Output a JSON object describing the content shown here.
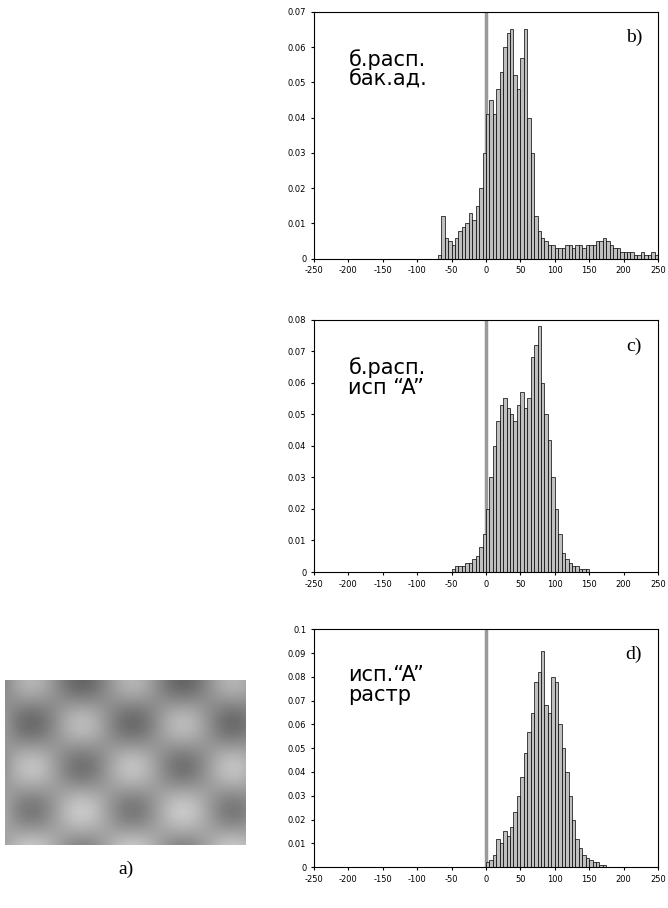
{
  "chart_data": [
    {
      "type": "histogram",
      "label": "b)",
      "annotation": "б.расп.\nбак.ад.",
      "bins": [
        -70,
        -65,
        -60,
        -55,
        -50,
        -45,
        -40,
        -35,
        -30,
        -25,
        -20,
        -15,
        -10,
        -5,
        0,
        5,
        10,
        15,
        20,
        25,
        30,
        35,
        40,
        45,
        50,
        55,
        60,
        65,
        70,
        75,
        80,
        85,
        90,
        95,
        100,
        105,
        110,
        115,
        120,
        125,
        130,
        135,
        140,
        145,
        150,
        155,
        160,
        165,
        170,
        175,
        180,
        185,
        190,
        195,
        200,
        205,
        210,
        215,
        220,
        225,
        230,
        235,
        240,
        245,
        250
      ],
      "counts": [
        0.001,
        0.012,
        0.006,
        0.005,
        0.004,
        0.006,
        0.008,
        0.009,
        0.01,
        0.013,
        0.011,
        0.015,
        0.02,
        0.03,
        0.041,
        0.045,
        0.041,
        0.048,
        0.053,
        0.06,
        0.064,
        0.065,
        0.052,
        0.048,
        0.057,
        0.065,
        0.04,
        0.03,
        0.012,
        0.008,
        0.006,
        0.005,
        0.004,
        0.004,
        0.003,
        0.003,
        0.003,
        0.004,
        0.004,
        0.003,
        0.004,
        0.004,
        0.003,
        0.004,
        0.004,
        0.004,
        0.005,
        0.005,
        0.006,
        0.005,
        0.004,
        0.003,
        0.003,
        0.002,
        0.002,
        0.002,
        0.002,
        0.001,
        0.001,
        0.002,
        0.001,
        0.001,
        0.002,
        0.001
      ],
      "color": "#bfbfbf",
      "reference_line": 0,
      "xlim": [
        -250,
        250
      ],
      "xticks": [
        -250,
        -200,
        -150,
        -100,
        -50,
        0,
        50,
        100,
        150,
        200,
        250
      ],
      "ylim": [
        0,
        0.07
      ],
      "yticks": [
        0,
        0.01,
        0.02,
        0.03,
        0.04,
        0.05,
        0.06,
        0.07
      ]
    },
    {
      "type": "histogram",
      "label": "c)",
      "annotation": "б.расп.\nисп “A”",
      "bins": [
        -50,
        -45,
        -40,
        -35,
        -30,
        -25,
        -20,
        -15,
        -10,
        -5,
        0,
        5,
        10,
        15,
        20,
        25,
        30,
        35,
        40,
        45,
        50,
        55,
        60,
        65,
        70,
        75,
        80,
        85,
        90,
        95,
        100,
        105,
        110,
        115,
        120,
        125,
        130,
        135,
        140,
        145,
        150
      ],
      "counts": [
        0.001,
        0.002,
        0.002,
        0.002,
        0.003,
        0.003,
        0.004,
        0.005,
        0.008,
        0.012,
        0.02,
        0.03,
        0.04,
        0.048,
        0.053,
        0.055,
        0.052,
        0.05,
        0.048,
        0.053,
        0.057,
        0.052,
        0.055,
        0.068,
        0.072,
        0.078,
        0.06,
        0.05,
        0.042,
        0.03,
        0.02,
        0.012,
        0.006,
        0.004,
        0.003,
        0.002,
        0.002,
        0.001,
        0.001,
        0.001
      ],
      "color": "#bfbfbf",
      "reference_line": 0,
      "xlim": [
        -250,
        250
      ],
      "xticks": [
        -250,
        -200,
        -150,
        -100,
        -50,
        0,
        50,
        100,
        150,
        200,
        250
      ],
      "ylim": [
        0,
        0.08
      ],
      "yticks": [
        0,
        0.01,
        0.02,
        0.03,
        0.04,
        0.05,
        0.06,
        0.07,
        0.08
      ]
    },
    {
      "type": "histogram",
      "label": "d)",
      "annotation": "исп.“A”\nрастр",
      "bins": [
        0,
        5,
        10,
        15,
        20,
        25,
        30,
        35,
        40,
        45,
        50,
        55,
        60,
        65,
        70,
        75,
        80,
        85,
        90,
        95,
        100,
        105,
        110,
        115,
        120,
        125,
        130,
        135,
        140,
        145,
        150,
        155,
        160,
        165,
        170,
        175
      ],
      "counts": [
        0.002,
        0.003,
        0.005,
        0.012,
        0.01,
        0.015,
        0.013,
        0.017,
        0.023,
        0.03,
        0.038,
        0.048,
        0.057,
        0.065,
        0.078,
        0.082,
        0.091,
        0.068,
        0.065,
        0.08,
        0.078,
        0.06,
        0.05,
        0.04,
        0.03,
        0.02,
        0.012,
        0.008,
        0.005,
        0.004,
        0.003,
        0.002,
        0.002,
        0.001,
        0.001
      ],
      "color": "#bfbfbf",
      "reference_line": 0,
      "xlim": [
        -250,
        250
      ],
      "xticks": [
        -250,
        -200,
        -150,
        -100,
        -50,
        0,
        50,
        100,
        150,
        200,
        250
      ],
      "ylim": [
        0,
        0.1
      ],
      "yticks": [
        0,
        0.01,
        0.02,
        0.03,
        0.04,
        0.05,
        0.06,
        0.07,
        0.08,
        0.09,
        0.1
      ]
    }
  ],
  "image": {
    "label": "a)"
  }
}
